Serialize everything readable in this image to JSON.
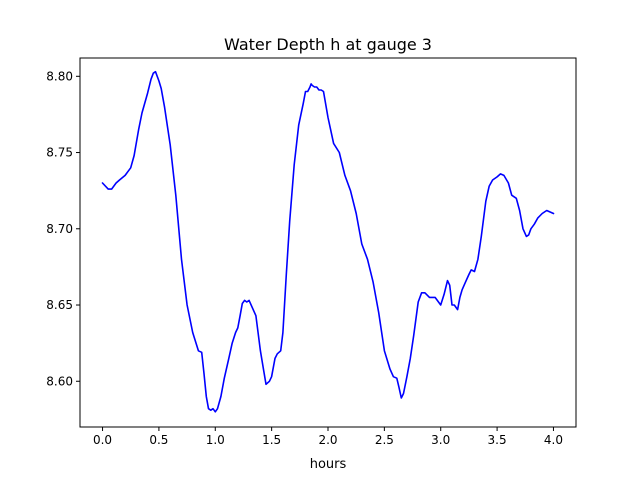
{
  "chart_data": {
    "type": "line",
    "title": "Water Depth h at gauge 3",
    "xlabel": "hours",
    "ylabel": "",
    "xlim": [
      -0.2,
      4.2
    ],
    "ylim": [
      8.57,
      8.812
    ],
    "xticks": [
      0.0,
      0.5,
      1.0,
      1.5,
      2.0,
      2.5,
      3.0,
      3.5,
      4.0
    ],
    "xtick_labels": [
      "0.0",
      "0.5",
      "1.0",
      "1.5",
      "2.0",
      "2.5",
      "3.0",
      "3.5",
      "4.0"
    ],
    "yticks": [
      8.6,
      8.65,
      8.7,
      8.75,
      8.8
    ],
    "ytick_labels": [
      "8.60",
      "8.65",
      "8.70",
      "8.75",
      "8.80"
    ],
    "grid": false,
    "series": [
      {
        "color": "#0000ff",
        "x": [
          0.0,
          0.05,
          0.08,
          0.12,
          0.15,
          0.2,
          0.25,
          0.28,
          0.32,
          0.35,
          0.4,
          0.43,
          0.45,
          0.47,
          0.5,
          0.52,
          0.55,
          0.6,
          0.65,
          0.7,
          0.75,
          0.8,
          0.85,
          0.88,
          0.9,
          0.92,
          0.94,
          0.96,
          0.98,
          1.0,
          1.02,
          1.05,
          1.08,
          1.12,
          1.15,
          1.18,
          1.2,
          1.22,
          1.24,
          1.26,
          1.28,
          1.3,
          1.33,
          1.36,
          1.4,
          1.43,
          1.45,
          1.48,
          1.5,
          1.53,
          1.55,
          1.58,
          1.6,
          1.63,
          1.66,
          1.7,
          1.74,
          1.78,
          1.8,
          1.82,
          1.84,
          1.85,
          1.86,
          1.88,
          1.9,
          1.92,
          1.94,
          1.96,
          2.0,
          2.05,
          2.1,
          2.15,
          2.2,
          2.25,
          2.3,
          2.35,
          2.4,
          2.45,
          2.5,
          2.55,
          2.58,
          2.61,
          2.63,
          2.65,
          2.67,
          2.7,
          2.73,
          2.76,
          2.8,
          2.83,
          2.86,
          2.9,
          2.92,
          2.95,
          2.98,
          3.0,
          3.03,
          3.06,
          3.08,
          3.1,
          3.12,
          3.15,
          3.17,
          3.19,
          3.22,
          3.25,
          3.27,
          3.3,
          3.33,
          3.36,
          3.4,
          3.43,
          3.46,
          3.5,
          3.53,
          3.56,
          3.6,
          3.63,
          3.67,
          3.7,
          3.73,
          3.76,
          3.78,
          3.8,
          3.83,
          3.86,
          3.9,
          3.94,
          3.97,
          4.0
        ],
        "y": [
          8.73,
          8.726,
          8.726,
          8.73,
          8.732,
          8.735,
          8.74,
          8.748,
          8.765,
          8.776,
          8.789,
          8.798,
          8.802,
          8.803,
          8.797,
          8.792,
          8.78,
          8.755,
          8.722,
          8.68,
          8.65,
          8.632,
          8.62,
          8.619,
          8.605,
          8.59,
          8.582,
          8.581,
          8.582,
          8.58,
          8.582,
          8.59,
          8.602,
          8.615,
          8.625,
          8.632,
          8.635,
          8.643,
          8.651,
          8.653,
          8.652,
          8.653,
          8.648,
          8.643,
          8.62,
          8.607,
          8.598,
          8.6,
          8.603,
          8.615,
          8.618,
          8.62,
          8.632,
          8.67,
          8.705,
          8.742,
          8.768,
          8.782,
          8.79,
          8.79,
          8.793,
          8.795,
          8.794,
          8.793,
          8.793,
          8.791,
          8.791,
          8.79,
          8.773,
          8.756,
          8.75,
          8.735,
          8.725,
          8.71,
          8.69,
          8.68,
          8.665,
          8.645,
          8.62,
          8.608,
          8.603,
          8.602,
          8.596,
          8.589,
          8.592,
          8.603,
          8.615,
          8.63,
          8.652,
          8.658,
          8.658,
          8.655,
          8.655,
          8.655,
          8.652,
          8.65,
          8.657,
          8.666,
          8.663,
          8.65,
          8.65,
          8.647,
          8.655,
          8.66,
          8.665,
          8.67,
          8.673,
          8.672,
          8.68,
          8.695,
          8.718,
          8.728,
          8.732,
          8.734,
          8.736,
          8.735,
          8.73,
          8.722,
          8.72,
          8.712,
          8.7,
          8.695,
          8.696,
          8.7,
          8.703,
          8.707,
          8.71,
          8.712,
          8.711,
          8.71
        ]
      }
    ]
  }
}
